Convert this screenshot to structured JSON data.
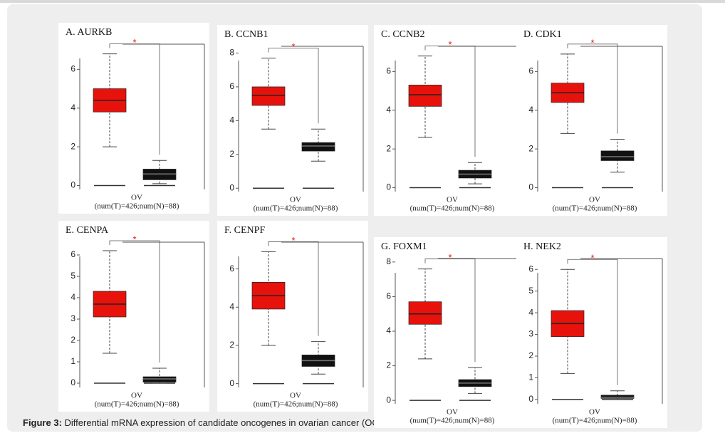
{
  "chart_data": [
    {
      "type": "box",
      "title": "A. AURKB",
      "xlabel": "OV",
      "note": "(num(T)=426;num(N)=88)",
      "annotation": "*",
      "ylim": [
        -0.2,
        7.3
      ],
      "yticks": [
        0,
        2,
        4,
        6
      ],
      "boxes": [
        {
          "color": "#e8120c",
          "low": 2.0,
          "q1": 3.8,
          "median": 4.4,
          "q3": 5.0,
          "high": 6.8
        },
        {
          "color": "#111111",
          "low": 0.1,
          "q1": 0.3,
          "median": 0.6,
          "q3": 0.85,
          "high": 1.3
        }
      ]
    },
    {
      "type": "box",
      "title": "B. CCNB1",
      "xlabel": "OV",
      "note": "(num(T)=426;num(N)=88)",
      "annotation": "*",
      "ylim": [
        -0.2,
        8.4
      ],
      "yticks": [
        0,
        2,
        4,
        6,
        8
      ],
      "boxes": [
        {
          "color": "#e8120c",
          "low": 3.5,
          "q1": 4.9,
          "median": 5.5,
          "q3": 6.0,
          "high": 7.7
        },
        {
          "color": "#111111",
          "low": 1.6,
          "q1": 2.2,
          "median": 2.5,
          "q3": 2.7,
          "high": 3.5
        }
      ]
    },
    {
      "type": "box",
      "title": "C. CCNB2",
      "xlabel": "OV",
      "note": "(num(T)=426;num(N)=88)",
      "annotation": "*",
      "ylim": [
        -0.2,
        7.3
      ],
      "yticks": [
        0,
        2,
        4,
        6
      ],
      "boxes": [
        {
          "color": "#e8120c",
          "low": 2.6,
          "q1": 4.2,
          "median": 4.8,
          "q3": 5.3,
          "high": 6.8
        },
        {
          "color": "#111111",
          "low": 0.2,
          "q1": 0.5,
          "median": 0.7,
          "q3": 0.9,
          "high": 1.3
        }
      ]
    },
    {
      "type": "box",
      "title": "D. CDK1",
      "xlabel": "OV",
      "note": "(num(T)=426;num(N)=88)",
      "annotation": "*",
      "ylim": [
        -0.2,
        7.3
      ],
      "yticks": [
        0,
        2,
        4,
        6
      ],
      "boxes": [
        {
          "color": "#e8120c",
          "low": 2.8,
          "q1": 4.4,
          "median": 4.9,
          "q3": 5.4,
          "high": 6.9
        },
        {
          "color": "#111111",
          "low": 0.8,
          "q1": 1.4,
          "median": 1.6,
          "q3": 1.9,
          "high": 2.5
        }
      ]
    },
    {
      "type": "box",
      "title": "E. CENPA",
      "xlabel": "OV",
      "note": "(num(T)=426;num(N)=88)",
      "annotation": "*",
      "ylim": [
        -0.2,
        6.6
      ],
      "yticks": [
        0,
        1,
        2,
        3,
        4,
        5,
        6
      ],
      "boxes": [
        {
          "color": "#e8120c",
          "low": 1.4,
          "q1": 3.1,
          "median": 3.7,
          "q3": 4.3,
          "high": 6.2
        },
        {
          "color": "#111111",
          "low": 0,
          "q1": 0.05,
          "median": 0.2,
          "q3": 0.3,
          "high": 0.7
        }
      ]
    },
    {
      "type": "box",
      "title": "F. CENPF",
      "xlabel": "OV",
      "note": "(num(T)=426;num(N)=88)",
      "annotation": "*",
      "ylim": [
        -0.2,
        7.4
      ],
      "yticks": [
        0,
        2,
        4,
        6
      ],
      "boxes": [
        {
          "color": "#e8120c",
          "low": 2.0,
          "q1": 3.9,
          "median": 4.6,
          "q3": 5.3,
          "high": 6.9
        },
        {
          "color": "#111111",
          "low": 0.5,
          "q1": 0.9,
          "median": 1.2,
          "q3": 1.5,
          "high": 2.2
        }
      ]
    },
    {
      "type": "box",
      "title": "G. FOXM1",
      "xlabel": "OV",
      "note": "(num(T)=426;num(N)=88)",
      "annotation": "*",
      "ylim": [
        -0.2,
        8.2
      ],
      "yticks": [
        0,
        2,
        4,
        6,
        8
      ],
      "boxes": [
        {
          "color": "#e8120c",
          "low": 2.4,
          "q1": 4.4,
          "median": 5.0,
          "q3": 5.7,
          "high": 7.6
        },
        {
          "color": "#111111",
          "low": 0.4,
          "q1": 0.8,
          "median": 1.0,
          "q3": 1.2,
          "high": 1.9
        }
      ]
    },
    {
      "type": "box",
      "title": "H. NEK2",
      "xlabel": "OV",
      "note": "(num(T)=426;num(N)=88)",
      "annotation": "*",
      "ylim": [
        -0.2,
        6.5
      ],
      "yticks": [
        0,
        1,
        2,
        3,
        4,
        5,
        6
      ],
      "boxes": [
        {
          "color": "#e8120c",
          "low": 1.2,
          "q1": 2.9,
          "median": 3.5,
          "q3": 4.1,
          "high": 6.0
        },
        {
          "color": "#111111",
          "low": 0,
          "q1": 0.05,
          "median": 0.1,
          "q3": 0.2,
          "high": 0.4
        }
      ]
    }
  ],
  "caption": {
    "label": "Figure 3:",
    "text": " Differential mRNA expression of candidate oncogenes in ovarian cancer (OC)"
  }
}
